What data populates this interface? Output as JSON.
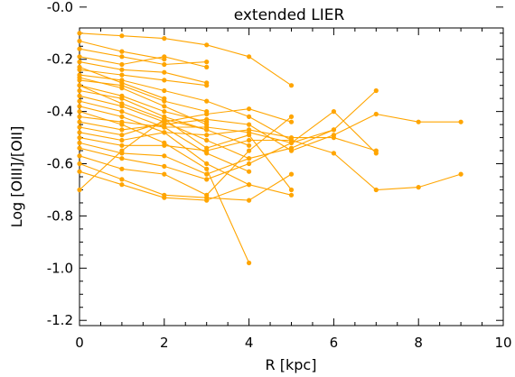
{
  "chart_data": {
    "type": "line",
    "title": "extended LIER",
    "xlabel": "R [kpc]",
    "ylabel": "Log [OIII]/[OII]",
    "xlim": [
      0,
      10
    ],
    "ylim": [
      -1.22,
      -0.08
    ],
    "x_ticks": [
      "0",
      "2",
      "4",
      "6",
      "8",
      "10"
    ],
    "y_ticks": [
      "-0.0",
      "-0.2",
      "-0.4",
      "-0.6",
      "-0.8",
      "-1.0",
      "-1.2"
    ],
    "x_tick_values": [
      0,
      2,
      4,
      6,
      8,
      10
    ],
    "y_tick_values": [
      0.0,
      -0.2,
      -0.4,
      -0.6,
      -0.8,
      -1.0,
      -1.2
    ],
    "grid": false,
    "legend": "none",
    "color": "#ffa500",
    "series": [
      {
        "x": [
          0,
          1,
          2,
          3,
          4,
          5
        ],
        "y": [
          -0.1,
          -0.11,
          -0.12,
          -0.145,
          -0.19,
          -0.3
        ]
      },
      {
        "x": [
          0,
          1,
          2
        ],
        "y": [
          -0.13,
          -0.17,
          -0.2
        ]
      },
      {
        "x": [
          0,
          1,
          2,
          3
        ],
        "y": [
          -0.16,
          -0.19,
          -0.22,
          -0.21
        ]
      },
      {
        "x": [
          0,
          1,
          2,
          3
        ],
        "y": [
          -0.19,
          -0.22,
          -0.19,
          -0.23
        ]
      },
      {
        "x": [
          0,
          1,
          2,
          3
        ],
        "y": [
          -0.21,
          -0.24,
          -0.25,
          -0.29
        ]
      },
      {
        "x": [
          0,
          1,
          2,
          3
        ],
        "y": [
          -0.24,
          -0.26,
          -0.28,
          -0.3
        ]
      },
      {
        "x": [
          0,
          1,
          2,
          3,
          4,
          5
        ],
        "y": [
          -0.26,
          -0.28,
          -0.32,
          -0.36,
          -0.42,
          -0.51
        ]
      },
      {
        "x": [
          0,
          1,
          2,
          3
        ],
        "y": [
          -0.28,
          -0.3,
          -0.36,
          -0.4
        ]
      },
      {
        "x": [
          0,
          1,
          2,
          3
        ],
        "y": [
          -0.3,
          -0.34,
          -0.4,
          -0.44
        ]
      },
      {
        "x": [
          0,
          1,
          2,
          3,
          4
        ],
        "y": [
          -0.32,
          -0.35,
          -0.42,
          -0.47,
          -0.53
        ]
      },
      {
        "x": [
          0,
          1,
          2,
          3,
          4
        ],
        "y": [
          -0.34,
          -0.38,
          -0.44,
          -0.51,
          -0.58
        ]
      },
      {
        "x": [
          0,
          1,
          2,
          3,
          4
        ],
        "y": [
          -0.36,
          -0.4,
          -0.46,
          -0.56,
          -0.63
        ]
      },
      {
        "x": [
          0,
          1,
          2,
          3,
          4
        ],
        "y": [
          -0.38,
          -0.42,
          -0.48,
          -0.6,
          -0.68
        ]
      },
      {
        "x": [
          0,
          1,
          2,
          3,
          4
        ],
        "y": [
          -0.4,
          -0.45,
          -0.52,
          -0.62,
          -0.98
        ]
      },
      {
        "x": [
          0,
          1,
          2,
          3,
          4,
          5,
          6,
          7
        ],
        "y": [
          -0.42,
          -0.44,
          -0.46,
          -0.46,
          -0.48,
          -0.52,
          -0.47,
          -0.32
        ]
      },
      {
        "x": [
          0,
          1,
          2,
          3,
          4,
          5,
          6,
          7,
          8,
          9
        ],
        "y": [
          -0.44,
          -0.47,
          -0.45,
          -0.43,
          -0.45,
          -0.55,
          -0.49,
          -0.41,
          -0.44,
          -0.44
        ]
      },
      {
        "x": [
          0,
          1,
          2,
          3,
          4,
          5
        ],
        "y": [
          -0.46,
          -0.49,
          -0.44,
          -0.41,
          -0.39,
          -0.44
        ]
      },
      {
        "x": [
          0,
          1,
          2,
          3,
          4,
          5,
          6,
          7
        ],
        "y": [
          -0.48,
          -0.51,
          -0.48,
          -0.49,
          -0.47,
          -0.5,
          -0.5,
          -0.55
        ]
      },
      {
        "x": [
          0,
          1,
          2,
          3,
          4,
          5,
          6,
          7,
          8,
          9
        ],
        "y": [
          -0.5,
          -0.53,
          -0.53,
          -0.55,
          -0.51,
          -0.51,
          -0.56,
          -0.7,
          -0.69,
          -0.64
        ]
      },
      {
        "x": [
          0,
          1,
          2,
          3,
          4,
          5,
          6
        ],
        "y": [
          -0.52,
          -0.56,
          -0.57,
          -0.64,
          -0.58,
          -0.54,
          -0.47
        ]
      },
      {
        "x": [
          0,
          1,
          2,
          3,
          4,
          5,
          6,
          7
        ],
        "y": [
          -0.54,
          -0.58,
          -0.61,
          -0.66,
          -0.6,
          -0.52,
          -0.4,
          -0.56
        ]
      },
      {
        "x": [
          0,
          1,
          2,
          3,
          4,
          5
        ],
        "y": [
          -0.57,
          -0.62,
          -0.64,
          -0.72,
          -0.55,
          -0.42
        ]
      },
      {
        "x": [
          0,
          1,
          2,
          3,
          4,
          5
        ],
        "y": [
          -0.6,
          -0.66,
          -0.72,
          -0.73,
          -0.74,
          -0.64
        ]
      },
      {
        "x": [
          0,
          1,
          2,
          3,
          4,
          5
        ],
        "y": [
          -0.63,
          -0.68,
          -0.73,
          -0.74,
          -0.68,
          -0.72
        ]
      },
      {
        "x": [
          0,
          1,
          2,
          3,
          4,
          5
        ],
        "y": [
          -0.7,
          -0.55,
          -0.43,
          -0.54,
          -0.49,
          -0.7
        ]
      },
      {
        "x": [
          0,
          1,
          2,
          3
        ],
        "y": [
          -0.3,
          -0.37,
          -0.43,
          -0.47
        ]
      },
      {
        "x": [
          0,
          1,
          2,
          3
        ],
        "y": [
          -0.27,
          -0.31,
          -0.38,
          -0.45
        ]
      },
      {
        "x": [
          0,
          1,
          2
        ],
        "y": [
          -0.23,
          -0.29,
          -0.35
        ]
      }
    ]
  }
}
